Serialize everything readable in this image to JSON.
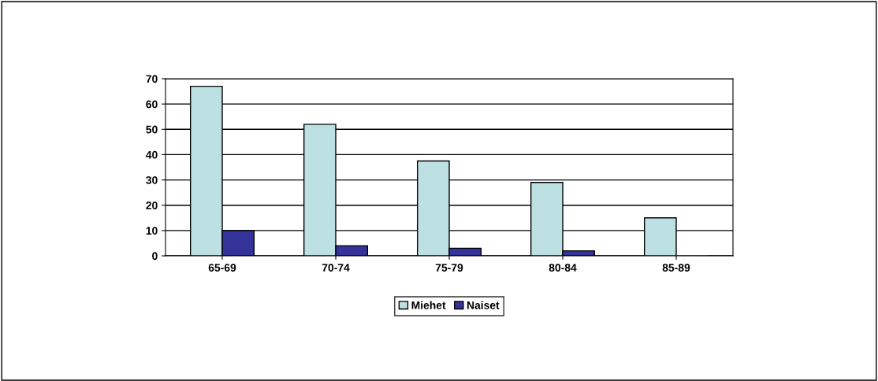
{
  "chart_data": {
    "type": "bar",
    "categories": [
      "65-69",
      "70-74",
      "75-79",
      "80-84",
      "85-89"
    ],
    "series": [
      {
        "name": "Miehet",
        "color": "#bde0e3",
        "values": [
          67,
          52,
          37.5,
          29,
          15
        ]
      },
      {
        "name": "Naiset",
        "color": "#333399",
        "values": [
          10,
          4,
          3,
          2,
          0
        ]
      }
    ],
    "ylim": [
      0,
      70
    ],
    "yticks": [
      0,
      10,
      20,
      30,
      40,
      50,
      60,
      70
    ],
    "grid": "y",
    "legend": "bottom"
  }
}
